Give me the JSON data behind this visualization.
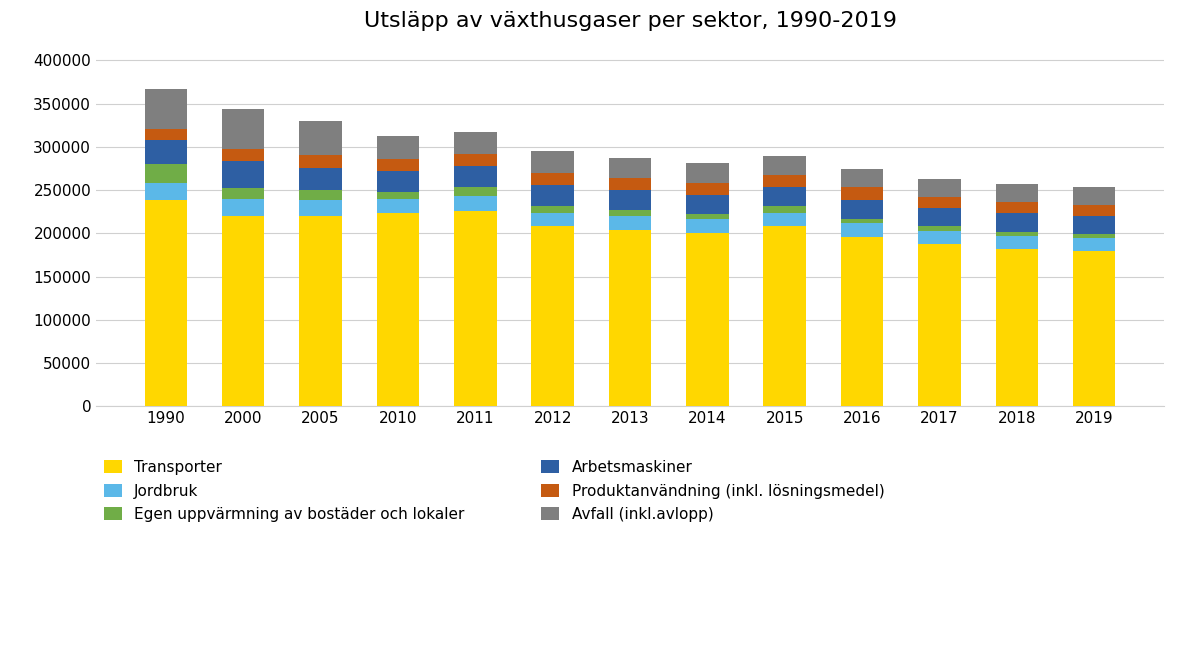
{
  "title": "Utsläpp av växthusgaser per sektor, 1990-2019",
  "years": [
    1990,
    2000,
    2005,
    2010,
    2011,
    2012,
    2013,
    2014,
    2015,
    2016,
    2017,
    2018,
    2019
  ],
  "sectors": [
    "Transporter",
    "Jordbruk",
    "Egen uppvärmning av bostäder och lokaler",
    "Arbetsmaskiner",
    "Produktanvändning (inkl. lösningsmedel)",
    "Avfall (inkl.avlopp)"
  ],
  "colors": [
    "#FFD700",
    "#5BB8E8",
    "#70AD47",
    "#2E5FA3",
    "#C55A11",
    "#7F7F7F"
  ],
  "data": {
    "Transporter": [
      238000,
      220000,
      220000,
      223000,
      226000,
      208000,
      204000,
      200000,
      208000,
      196000,
      188000,
      182000,
      180000
    ],
    "Jordbruk": [
      20000,
      20000,
      18000,
      17000,
      17000,
      16000,
      16000,
      16000,
      16000,
      16000,
      15000,
      15000,
      15000
    ],
    "Egen uppvärmning av bostäder och lokaler": [
      22000,
      12000,
      12000,
      8000,
      10000,
      8000,
      7000,
      6000,
      7000,
      5000,
      5000,
      5000,
      4000
    ],
    "Arbetsmaskiner": [
      28000,
      32000,
      26000,
      24000,
      25000,
      24000,
      23000,
      22000,
      22000,
      22000,
      21000,
      21000,
      21000
    ],
    "Produktanvändning (inkl. lösningsmedel)": [
      12000,
      14000,
      14000,
      14000,
      14000,
      14000,
      14000,
      14000,
      14000,
      14000,
      13000,
      13000,
      13000
    ],
    "Avfall (inkl.avlopp)": [
      47000,
      46000,
      40000,
      26000,
      25000,
      25000,
      23000,
      23000,
      22000,
      21000,
      21000,
      21000,
      21000
    ]
  },
  "ylim": [
    0,
    410000
  ],
  "yticks": [
    0,
    50000,
    100000,
    150000,
    200000,
    250000,
    300000,
    350000,
    400000
  ],
  "ytick_labels": [
    "0",
    "50000",
    "100000",
    "150000",
    "200000",
    "250000",
    "300000",
    "350000",
    "400000"
  ],
  "figsize": [
    12.0,
    6.45
  ],
  "dpi": 100,
  "background_color": "#FFFFFF",
  "grid_color": "#D0D0D0",
  "bar_width": 0.55,
  "legend_order": [
    0,
    1,
    2,
    3,
    4,
    5
  ]
}
